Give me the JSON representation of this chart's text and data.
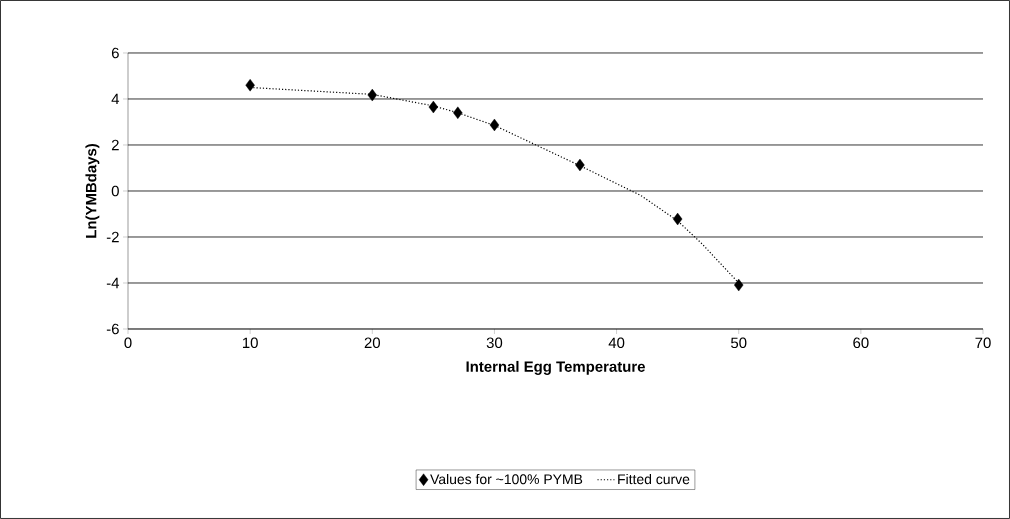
{
  "chart_data": {
    "type": "scatter",
    "xlabel": "Internal Egg Temperature",
    "ylabel": "Ln(YMBdays)",
    "xlim": [
      0,
      70
    ],
    "xticks": [
      0,
      10,
      20,
      30,
      40,
      50,
      60,
      70
    ],
    "ylim": [
      -6,
      6
    ],
    "yticks": [
      -6,
      -4,
      -2,
      0,
      2,
      4,
      6
    ],
    "grid": "y",
    "legend": "bottom",
    "series": [
      {
        "name": "Values  for ~100% PYMB",
        "type": "scatter",
        "color": "#000000",
        "marker": "diamond",
        "x": [
          10,
          20,
          25,
          27,
          30,
          37,
          45,
          50
        ],
        "values": [
          4.6,
          4.17,
          3.65,
          3.4,
          2.87,
          1.13,
          -1.22,
          -4.09
        ]
      },
      {
        "name": "Fitted curve",
        "type": "line",
        "color": "#000000",
        "marker": "none",
        "line_style": "dotted",
        "x": [
          10,
          20,
          25,
          27,
          30,
          37,
          42,
          45,
          47,
          50
        ],
        "values": [
          4.5,
          4.2,
          3.7,
          3.4,
          2.85,
          1.1,
          -0.2,
          -1.3,
          -2.3,
          -4.0
        ]
      }
    ]
  }
}
